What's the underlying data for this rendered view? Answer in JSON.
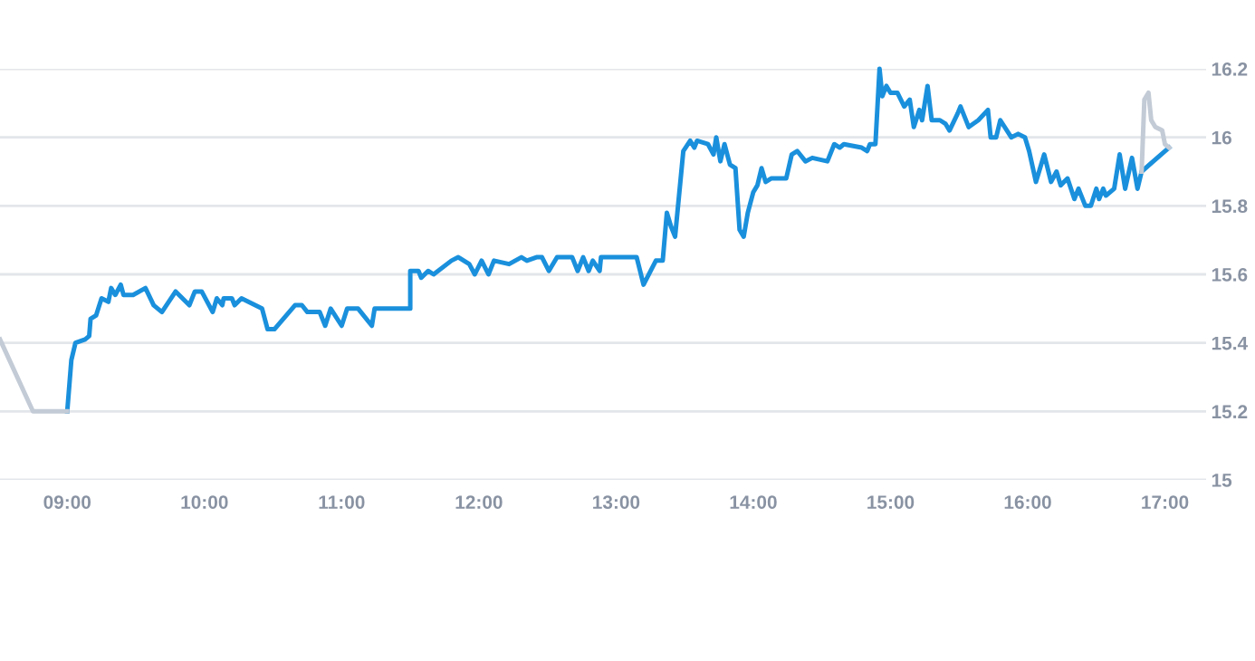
{
  "chart_data": {
    "type": "line",
    "x": [
      9.0,
      9.03,
      9.06,
      9.13,
      9.16,
      9.17,
      9.21,
      9.25,
      9.3,
      9.32,
      9.35,
      9.39,
      9.41,
      9.48,
      9.57,
      9.63,
      9.69,
      9.79,
      9.89,
      9.93,
      9.98,
      10.06,
      10.09,
      10.13,
      10.14,
      10.2,
      10.22,
      10.27,
      10.42,
      10.46,
      10.51,
      10.66,
      10.71,
      10.75,
      10.84,
      10.88,
      10.92,
      11.0,
      11.04,
      11.12,
      11.22,
      11.24,
      11.5,
      11.5,
      11.56,
      11.58,
      11.63,
      11.67,
      11.8,
      11.85,
      11.93,
      11.97,
      12.02,
      12.07,
      12.11,
      12.22,
      12.31,
      12.35,
      12.42,
      12.46,
      12.51,
      12.57,
      12.68,
      12.72,
      12.76,
      12.8,
      12.83,
      12.88,
      12.89,
      13.15,
      13.2,
      13.29,
      13.34,
      13.37,
      13.4,
      13.43,
      13.49,
      13.54,
      13.57,
      13.59,
      13.67,
      13.71,
      13.73,
      13.76,
      13.79,
      13.83,
      13.87,
      13.9,
      13.93,
      13.96,
      14.0,
      14.03,
      14.06,
      14.09,
      14.13,
      14.24,
      14.28,
      14.32,
      14.38,
      14.43,
      14.54,
      14.59,
      14.63,
      14.66,
      14.79,
      14.83,
      14.85,
      14.89,
      14.92,
      14.94,
      14.97,
      15.0,
      15.05,
      15.1,
      15.14,
      15.17,
      15.21,
      15.23,
      15.27,
      15.3,
      15.36,
      15.4,
      15.43,
      15.49,
      15.51,
      15.57,
      15.64,
      15.71,
      15.73,
      15.77,
      15.8,
      15.88,
      15.93,
      15.98,
      16.01,
      16.06,
      16.09,
      16.12,
      16.17,
      16.21,
      16.24,
      16.29,
      16.34,
      16.37,
      16.42,
      16.46,
      16.5,
      16.52,
      16.55,
      16.57,
      16.63,
      16.67,
      16.71,
      16.76,
      16.8,
      16.83,
      17.03
    ],
    "series": [
      {
        "color": "#1a90dc",
        "values": [
          15.2,
          15.35,
          15.4,
          15.41,
          15.42,
          15.47,
          15.48,
          15.53,
          15.52,
          15.56,
          15.54,
          15.57,
          15.54,
          15.54,
          15.56,
          15.51,
          15.49,
          15.55,
          15.51,
          15.55,
          15.55,
          15.49,
          15.53,
          15.51,
          15.53,
          15.53,
          15.51,
          15.53,
          15.5,
          15.44,
          15.44,
          15.51,
          15.51,
          15.49,
          15.49,
          15.45,
          15.5,
          15.45,
          15.5,
          15.5,
          15.45,
          15.5,
          15.5,
          15.61,
          15.61,
          15.59,
          15.61,
          15.6,
          15.64,
          15.65,
          15.63,
          15.6,
          15.64,
          15.6,
          15.64,
          15.63,
          15.65,
          15.64,
          15.65,
          15.65,
          15.61,
          15.65,
          15.65,
          15.61,
          15.65,
          15.61,
          15.64,
          15.61,
          15.65,
          15.65,
          15.57,
          15.64,
          15.64,
          15.78,
          15.74,
          15.71,
          15.96,
          15.99,
          15.97,
          15.99,
          15.98,
          15.95,
          16.0,
          15.93,
          15.98,
          15.92,
          15.91,
          15.73,
          15.71,
          15.78,
          15.84,
          15.86,
          15.91,
          15.87,
          15.88,
          15.88,
          15.95,
          15.96,
          15.93,
          15.94,
          15.93,
          15.98,
          15.97,
          15.98,
          15.97,
          15.96,
          15.98,
          15.98,
          16.2,
          16.12,
          16.15,
          16.13,
          16.13,
          16.09,
          16.11,
          16.03,
          16.08,
          16.05,
          16.15,
          16.05,
          16.05,
          16.04,
          16.02,
          16.07,
          16.09,
          16.03,
          16.05,
          16.08,
          16.0,
          16.0,
          16.05,
          16.0,
          16.01,
          16.0,
          15.96,
          15.87,
          15.91,
          15.95,
          15.87,
          15.9,
          15.86,
          15.88,
          15.82,
          15.85,
          15.8,
          15.8,
          15.85,
          15.82,
          15.85,
          15.83,
          15.85,
          15.95,
          15.85,
          15.94,
          15.85,
          15.9,
          15.97
        ]
      },
      {
        "color": "#c3cbd6",
        "x": [
          8.51,
          8.75,
          9.0
        ],
        "values": [
          15.41,
          15.2,
          15.2
        ]
      },
      {
        "color": "#c3cbd6",
        "x": [
          16.83,
          16.85,
          16.88,
          16.9,
          16.93,
          16.98,
          17.0,
          17.03
        ],
        "values": [
          15.9,
          16.11,
          16.13,
          16.05,
          16.03,
          16.02,
          15.98,
          15.97
        ]
      }
    ],
    "xlim": [
      8.51,
      17.3
    ],
    "xticks": [
      {
        "value": 9,
        "label": "09:00"
      },
      {
        "value": 10,
        "label": "10:00"
      },
      {
        "value": 11,
        "label": "11:00"
      },
      {
        "value": 12,
        "label": "12:00"
      },
      {
        "value": 13,
        "label": "13:00"
      },
      {
        "value": 14,
        "label": "14:00"
      },
      {
        "value": 15,
        "label": "15:00"
      },
      {
        "value": 16,
        "label": "16:00"
      },
      {
        "value": 17,
        "label": "17:00"
      }
    ],
    "ylim": [
      15,
      16.2
    ],
    "yticks": [
      15,
      15.2,
      15.4,
      15.6,
      15.8,
      16,
      16.2
    ],
    "grid": "y",
    "legend": false,
    "line_style": "solid",
    "marker": "none"
  }
}
